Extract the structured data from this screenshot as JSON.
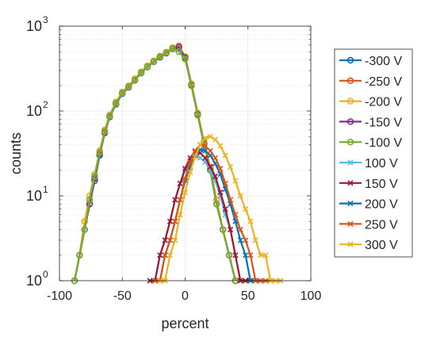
{
  "chart_data": {
    "type": "line",
    "xlabel": "percent",
    "ylabel": "counts",
    "xlim": [
      -100,
      100
    ],
    "ylim": [
      1,
      1000
    ],
    "y_scale": "log",
    "grid": true,
    "minor_grid": true,
    "legend_position": "right-outside",
    "x_ticks": [
      -100,
      -50,
      0,
      50,
      100
    ],
    "x_tick_labels": [
      "-100",
      "-50",
      "0",
      "50",
      "100"
    ],
    "y_ticks": [
      1,
      10,
      100,
      1000
    ],
    "y_tick_labels": [
      {
        "base": "10",
        "exp": "0"
      },
      {
        "base": "10",
        "exp": "1"
      },
      {
        "base": "10",
        "exp": "2"
      },
      {
        "base": "10",
        "exp": "3"
      }
    ],
    "series": [
      {
        "name": "-300 V",
        "color": "#0072BD",
        "marker": "o",
        "x": [
          -88,
          -84,
          -80,
          -76,
          -72,
          -68,
          -64,
          -60,
          -55,
          -50,
          -45,
          -40,
          -35,
          -30,
          -25,
          -20,
          -15,
          -10,
          -5,
          0,
          5,
          10,
          15,
          20,
          25,
          30,
          35,
          40
        ],
        "y": [
          1,
          2,
          4,
          8,
          15,
          30,
          55,
          85,
          120,
          160,
          190,
          230,
          280,
          330,
          380,
          430,
          480,
          540,
          560,
          420,
          200,
          90,
          40,
          20,
          8,
          4,
          2,
          1
        ]
      },
      {
        "name": "-250 V",
        "color": "#D95319",
        "marker": "o",
        "x": [
          -88,
          -84,
          -80,
          -76,
          -72,
          -68,
          -64,
          -60,
          -55,
          -50,
          -45,
          -40,
          -35,
          -30,
          -25,
          -20,
          -15,
          -10,
          -5,
          0,
          5,
          10,
          15,
          20,
          25,
          30,
          35,
          40
        ],
        "y": [
          1,
          2,
          5,
          9,
          17,
          33,
          58,
          88,
          125,
          165,
          195,
          235,
          285,
          335,
          385,
          440,
          490,
          550,
          580,
          430,
          205,
          92,
          42,
          21,
          9,
          4,
          2,
          1
        ]
      },
      {
        "name": "-200 V",
        "color": "#EDB120",
        "marker": "o",
        "x": [
          -88,
          -84,
          -80,
          -76,
          -72,
          -68,
          -64,
          -60,
          -55,
          -50,
          -45,
          -40,
          -35,
          -30,
          -25,
          -20,
          -15,
          -10,
          -5,
          0,
          5,
          10,
          15,
          20,
          25,
          30,
          35,
          40
        ],
        "y": [
          1,
          2,
          5,
          10,
          18,
          34,
          60,
          90,
          128,
          168,
          198,
          240,
          290,
          340,
          390,
          445,
          495,
          560,
          590,
          440,
          210,
          95,
          44,
          22,
          9,
          4,
          2,
          1
        ]
      },
      {
        "name": "-150 V",
        "color": "#7E2F8E",
        "marker": "o",
        "x": [
          -88,
          -84,
          -80,
          -76,
          -72,
          -68,
          -64,
          -60,
          -55,
          -50,
          -45,
          -40,
          -35,
          -30,
          -25,
          -20,
          -15,
          -10,
          -5,
          0,
          5,
          10,
          15,
          20,
          25,
          30,
          35,
          40
        ],
        "y": [
          1,
          2,
          4,
          8,
          16,
          31,
          56,
          86,
          122,
          162,
          192,
          232,
          282,
          332,
          382,
          435,
          485,
          545,
          570,
          425,
          202,
          91,
          41,
          20,
          8,
          4,
          2,
          1
        ]
      },
      {
        "name": "-100 V",
        "color": "#77AC30",
        "marker": "o",
        "x": [
          -88,
          -84,
          -80,
          -76,
          -72,
          -68,
          -64,
          -60,
          -55,
          -50,
          -45,
          -40,
          -35,
          -30,
          -25,
          -20,
          -15,
          -10,
          -5,
          0,
          5,
          10,
          15,
          20,
          25,
          30,
          35,
          40
        ],
        "y": [
          1,
          2,
          4,
          9,
          17,
          32,
          57,
          87,
          123,
          163,
          193,
          233,
          283,
          333,
          383,
          437,
          487,
          547,
          500,
          410,
          198,
          89,
          40,
          20,
          8,
          4,
          2,
          1
        ]
      },
      {
        "name": "100 V",
        "color": "#4DBEEE",
        "marker": "x",
        "x": [
          -28,
          -24,
          -20,
          -16,
          -12,
          -8,
          -4,
          0,
          4,
          8,
          12,
          16,
          20,
          24,
          28,
          32,
          36,
          40,
          44,
          48
        ],
        "y": [
          1,
          1,
          2,
          3,
          5,
          9,
          14,
          20,
          26,
          30,
          28,
          25,
          20,
          15,
          10,
          6,
          4,
          2,
          1,
          1
        ]
      },
      {
        "name": "150 V",
        "color": "#A2142F",
        "marker": "x",
        "x": [
          -28,
          -24,
          -20,
          -16,
          -12,
          -8,
          -4,
          0,
          4,
          8,
          12,
          16,
          20,
          24,
          28,
          32,
          36,
          40,
          44,
          48,
          52
        ],
        "y": [
          1,
          1,
          2,
          3,
          5,
          9,
          14,
          21,
          28,
          33,
          32,
          28,
          22,
          17,
          11,
          7,
          4,
          2,
          1,
          1,
          1
        ]
      },
      {
        "name": "200 V",
        "color": "#0072BD",
        "marker": "x",
        "x": [
          -24,
          -20,
          -16,
          -12,
          -8,
          -4,
          0,
          4,
          8,
          12,
          16,
          20,
          24,
          28,
          32,
          36,
          40,
          44,
          48,
          52,
          56,
          60
        ],
        "y": [
          1,
          1,
          2,
          3,
          5,
          9,
          15,
          22,
          30,
          35,
          34,
          30,
          24,
          18,
          12,
          8,
          5,
          3,
          2,
          1,
          1,
          1
        ]
      },
      {
        "name": "250 V",
        "color": "#D95319",
        "marker": "x",
        "x": [
          -24,
          -20,
          -16,
          -12,
          -8,
          -4,
          0,
          4,
          8,
          12,
          16,
          20,
          24,
          28,
          32,
          36,
          40,
          44,
          48,
          52,
          56,
          60,
          64,
          68
        ],
        "y": [
          1,
          1,
          2,
          3,
          5,
          9,
          16,
          25,
          34,
          40,
          39,
          34,
          28,
          21,
          14,
          9,
          6,
          4,
          3,
          2,
          1,
          1,
          1,
          1
        ]
      },
      {
        "name": "300 V",
        "color": "#EDB120",
        "marker": "x",
        "x": [
          -20,
          -16,
          -12,
          -8,
          -4,
          0,
          4,
          8,
          12,
          16,
          20,
          24,
          28,
          32,
          36,
          40,
          44,
          48,
          52,
          56,
          60,
          64,
          68,
          72,
          76
        ],
        "y": [
          1,
          1,
          2,
          3,
          6,
          11,
          19,
          29,
          40,
          48,
          50,
          46,
          39,
          30,
          22,
          15,
          10,
          7,
          5,
          3,
          2,
          2,
          1,
          1,
          1
        ]
      }
    ]
  }
}
